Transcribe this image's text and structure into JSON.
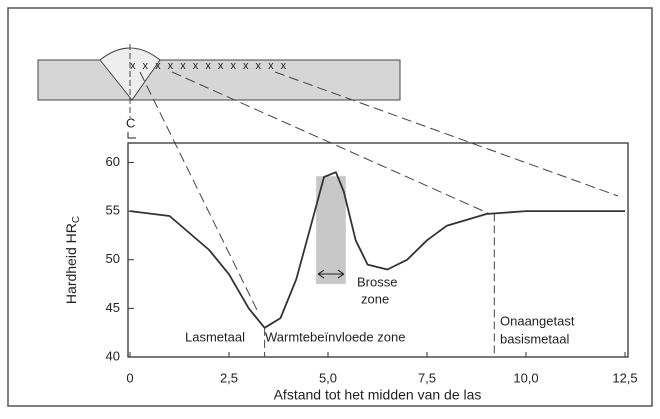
{
  "chart_data": {
    "type": "line",
    "ylabel": "Hardheid HR",
    "ylabel_sub": "C",
    "xlabel": "Afstand tot het midden van de las",
    "centerline_label": "C",
    "x": [
      0,
      1,
      2,
      2.5,
      3,
      3.4,
      3.8,
      4.2,
      4.6,
      4.9,
      5.2,
      5.4,
      5.7,
      6.0,
      6.5,
      7.0,
      7.5,
      8.0,
      9.0,
      10.0,
      12.5
    ],
    "values": [
      55,
      54.5,
      51,
      48.5,
      45,
      43,
      44,
      48,
      54,
      58.5,
      59,
      57,
      52,
      49.5,
      49,
      50,
      52,
      53.5,
      54.7,
      55,
      55
    ],
    "color": "#333333",
    "xlim": [
      0,
      12.5
    ],
    "ylim": [
      40,
      62
    ],
    "xticks": [
      0,
      {
        "value": 2.5,
        "label": "2,5"
      },
      {
        "value": 5,
        "label": "5,0"
      },
      {
        "value": 7.5,
        "label": "7,5"
      },
      {
        "value": 10,
        "label": "10,0"
      },
      {
        "value": 12.5,
        "label": "12,5"
      }
    ],
    "yticks": [
      40,
      45,
      50,
      55,
      60
    ],
    "zone_boundaries": [
      3.4,
      9.2
    ],
    "brittle_zone": {
      "x": [
        4.7,
        5.45
      ],
      "bottom": 47.5,
      "color": "#c8c8c8"
    },
    "annotations": [
      "Lasmetaal",
      "Warmtebeïnvloede zone",
      "Brosse",
      "zone",
      "Onaangetast",
      "basismetaal"
    ]
  }
}
